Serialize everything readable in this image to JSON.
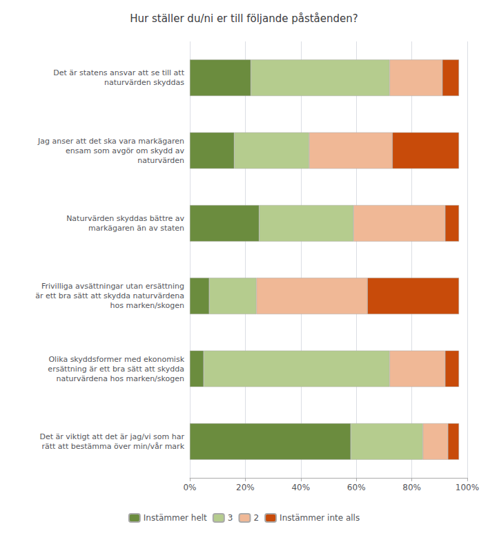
{
  "chart_data": {
    "type": "bar",
    "orientation": "horizontal",
    "stacked": true,
    "title": "Hur ställer du/ni er till följande påståenden?",
    "categories": [
      "Det är statens ansvar att se till att\nnaturvärden skyddas",
      "Jag anser att det ska vara markägaren\nensam som avgör om skydd av\nnaturvärden",
      "Naturvärden skyddas bättre av\nmarkägaren än av staten",
      "Frivilliga avsättningar utan ersättning\när ett bra sätt att skydda naturvärdena\nhos marken/skogen",
      "Olika skyddsformer med ekonomisk\nersättning är ett bra sätt att skydda\nnaturvärdena hos marken/skogen",
      "Det är viktigt att det är jag/vi som har\nrätt att bestämma över min/vår mark"
    ],
    "series": [
      {
        "name": "Instämmer helt",
        "color": "#6b8c3e",
        "values": [
          22,
          16,
          25,
          7,
          5,
          58
        ]
      },
      {
        "name": "3",
        "color": "#b5cc8e",
        "values": [
          50,
          27,
          34,
          17,
          67,
          26
        ]
      },
      {
        "name": "2",
        "color": "#f0b896",
        "values": [
          19,
          30,
          33,
          40,
          20,
          9
        ]
      },
      {
        "name": "Instämmer inte alls",
        "color": "#c84b0a",
        "values": [
          6,
          24,
          5,
          33,
          5,
          4
        ]
      }
    ],
    "xlim": [
      0,
      100
    ],
    "xticks": [
      {
        "value": 0,
        "label": "0%"
      },
      {
        "value": 20,
        "label": "20%"
      },
      {
        "value": 40,
        "label": "40%"
      },
      {
        "value": 60,
        "label": "60%"
      },
      {
        "value": 80,
        "label": "80%"
      },
      {
        "value": 100,
        "label": "100%"
      }
    ],
    "grid": true,
    "legend": "bottom"
  }
}
